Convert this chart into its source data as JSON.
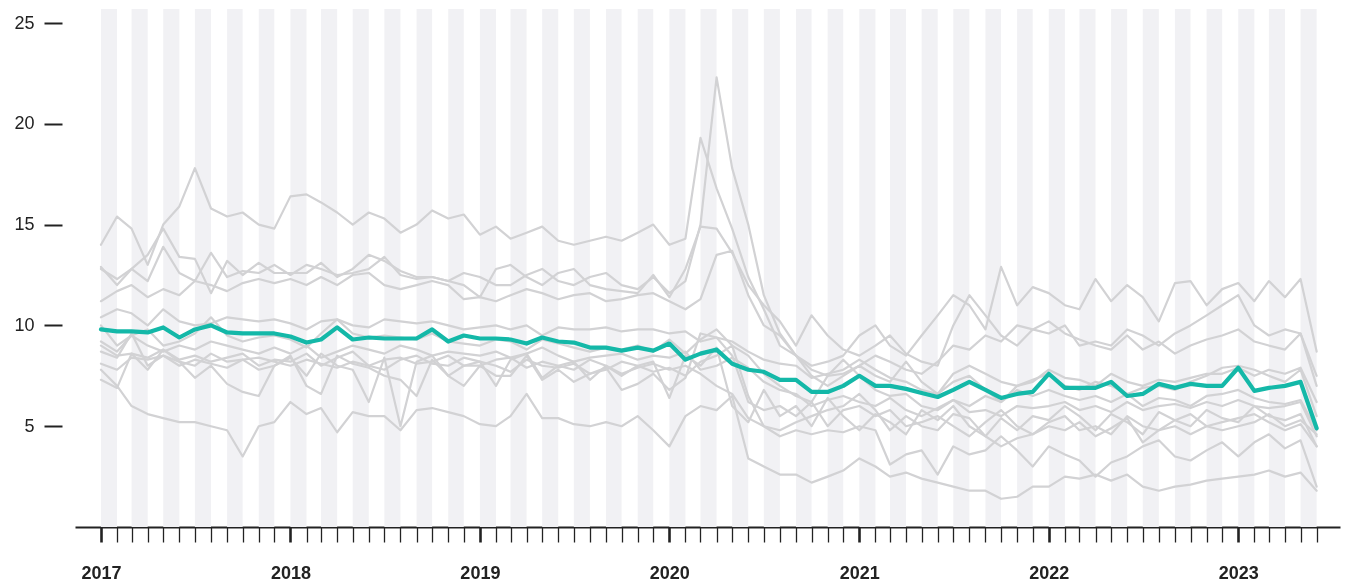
{
  "chart_data": {
    "type": "line",
    "line_style": "solid",
    "x": [
      "2017-01",
      "2017-02",
      "2017-03",
      "2017-04",
      "2017-05",
      "2017-06",
      "2017-07",
      "2017-08",
      "2017-09",
      "2017-10",
      "2017-11",
      "2017-12",
      "2018-01",
      "2018-02",
      "2018-03",
      "2018-04",
      "2018-05",
      "2018-06",
      "2018-07",
      "2018-08",
      "2018-09",
      "2018-10",
      "2018-11",
      "2018-12",
      "2019-01",
      "2019-02",
      "2019-03",
      "2019-04",
      "2019-05",
      "2019-06",
      "2019-07",
      "2019-08",
      "2019-09",
      "2019-10",
      "2019-11",
      "2019-12",
      "2020-01",
      "2020-02",
      "2020-03",
      "2020-04",
      "2020-05",
      "2020-06",
      "2020-07",
      "2020-08",
      "2020-09",
      "2020-10",
      "2020-11",
      "2020-12",
      "2021-01",
      "2021-02",
      "2021-03",
      "2021-04",
      "2021-05",
      "2021-06",
      "2021-07",
      "2021-08",
      "2021-09",
      "2021-10",
      "2021-11",
      "2021-12",
      "2022-01",
      "2022-02",
      "2022-03",
      "2022-04",
      "2022-05",
      "2022-06",
      "2022-07",
      "2022-08",
      "2022-09",
      "2022-10",
      "2022-11",
      "2022-12",
      "2023-01",
      "2023-02",
      "2023-03",
      "2023-04",
      "2023-05",
      "2023-06"
    ],
    "xlim": [
      "2016-11-12",
      "2023-07-16"
    ],
    "xticks": [
      "2017",
      {
        "value": "2017-02",
        "label": null
      },
      {
        "value": "2017-03",
        "label": null
      },
      {
        "value": "2017-04",
        "label": null
      },
      {
        "value": "2017-05",
        "label": null
      },
      {
        "value": "2017-06",
        "label": null
      },
      {
        "value": "2017-07",
        "label": null
      },
      {
        "value": "2017-08",
        "label": null
      },
      {
        "value": "2017-09",
        "label": null
      },
      {
        "value": "2017-10",
        "label": null
      },
      {
        "value": "2017-11",
        "label": null
      },
      {
        "value": "2017-12",
        "label": null
      },
      "2018",
      {
        "value": "2018-02",
        "label": null
      },
      {
        "value": "2018-03",
        "label": null
      },
      {
        "value": "2018-04",
        "label": null
      },
      {
        "value": "2018-05",
        "label": null
      },
      {
        "value": "2018-06",
        "label": null
      },
      {
        "value": "2018-07",
        "label": null
      },
      {
        "value": "2018-08",
        "label": null
      },
      {
        "value": "2018-09",
        "label": null
      },
      {
        "value": "2018-10",
        "label": null
      },
      {
        "value": "2018-11",
        "label": null
      },
      {
        "value": "2018-12",
        "label": null
      },
      "2019",
      {
        "value": "2019-02",
        "label": null
      },
      {
        "value": "2019-03",
        "label": null
      },
      {
        "value": "2019-04",
        "label": null
      },
      {
        "value": "2019-05",
        "label": null
      },
      {
        "value": "2019-06",
        "label": null
      },
      {
        "value": "2019-07",
        "label": null
      },
      {
        "value": "2019-08",
        "label": null
      },
      {
        "value": "2019-09",
        "label": null
      },
      {
        "value": "2019-10",
        "label": null
      },
      {
        "value": "2019-11",
        "label": null
      },
      {
        "value": "2019-12",
        "label": null
      },
      "2020",
      {
        "value": "2020-02",
        "label": null
      },
      {
        "value": "2020-03",
        "label": null
      },
      {
        "value": "2020-04",
        "label": null
      },
      {
        "value": "2020-05",
        "label": null
      },
      {
        "value": "2020-06",
        "label": null
      },
      {
        "value": "2020-07",
        "label": null
      },
      {
        "value": "2020-08",
        "label": null
      },
      {
        "value": "2020-09",
        "label": null
      },
      {
        "value": "2020-10",
        "label": null
      },
      {
        "value": "2020-11",
        "label": null
      },
      {
        "value": "2020-12",
        "label": null
      },
      "2021",
      {
        "value": "2021-02",
        "label": null
      },
      {
        "value": "2021-03",
        "label": null
      },
      {
        "value": "2021-04",
        "label": null
      },
      {
        "value": "2021-05",
        "label": null
      },
      {
        "value": "2021-06",
        "label": null
      },
      {
        "value": "2021-07",
        "label": null
      },
      {
        "value": "2021-08",
        "label": null
      },
      {
        "value": "2021-09",
        "label": null
      },
      {
        "value": "2021-10",
        "label": null
      },
      {
        "value": "2021-11",
        "label": null
      },
      {
        "value": "2021-12",
        "label": null
      },
      "2022",
      {
        "value": "2022-02",
        "label": null
      },
      {
        "value": "2022-03",
        "label": null
      },
      {
        "value": "2022-04",
        "label": null
      },
      {
        "value": "2022-05",
        "label": null
      },
      {
        "value": "2022-06",
        "label": null
      },
      {
        "value": "2022-07",
        "label": null
      },
      {
        "value": "2022-08",
        "label": null
      },
      {
        "value": "2022-09",
        "label": null
      },
      {
        "value": "2022-10",
        "label": null
      },
      {
        "value": "2022-11",
        "label": null
      },
      {
        "value": "2022-12",
        "label": null
      },
      "2023",
      {
        "value": "2023-02",
        "label": null
      },
      {
        "value": "2023-03",
        "label": null
      },
      {
        "value": "2023-04",
        "label": null
      },
      {
        "value": "2023-05",
        "label": null
      },
      {
        "value": "2023-06",
        "label": null
      }
    ],
    "ylim": [
      0,
      25
    ],
    "yticks": [
      5,
      10,
      15,
      20,
      25
    ],
    "bands": [
      {
        "axis": "x",
        "from": "2017-01",
        "to": "2017-02",
        "color": "#f1f1f4"
      },
      {
        "axis": "x",
        "from": "2017-03",
        "to": "2017-04",
        "color": "#f1f1f4"
      },
      {
        "axis": "x",
        "from": "2017-05",
        "to": "2017-06",
        "color": "#f1f1f4"
      },
      {
        "axis": "x",
        "from": "2017-07",
        "to": "2017-08",
        "color": "#f1f1f4"
      },
      {
        "axis": "x",
        "from": "2017-09",
        "to": "2017-10",
        "color": "#f1f1f4"
      },
      {
        "axis": "x",
        "from": "2017-11",
        "to": "2017-12",
        "color": "#f1f1f4"
      },
      {
        "axis": "x",
        "from": "2018-01",
        "to": "2018-02",
        "color": "#f1f1f4"
      },
      {
        "axis": "x",
        "from": "2018-03",
        "to": "2018-04",
        "color": "#f1f1f4"
      },
      {
        "axis": "x",
        "from": "2018-05",
        "to": "2018-06",
        "color": "#f1f1f4"
      },
      {
        "axis": "x",
        "from": "2018-07",
        "to": "2018-08",
        "color": "#f1f1f4"
      },
      {
        "axis": "x",
        "from": "2018-09",
        "to": "2018-10",
        "color": "#f1f1f4"
      },
      {
        "axis": "x",
        "from": "2018-11",
        "to": "2018-12",
        "color": "#f1f1f4"
      },
      {
        "axis": "x",
        "from": "2019-01",
        "to": "2019-02",
        "color": "#f1f1f4"
      },
      {
        "axis": "x",
        "from": "2019-03",
        "to": "2019-04",
        "color": "#f1f1f4"
      },
      {
        "axis": "x",
        "from": "2019-05",
        "to": "2019-06",
        "color": "#f1f1f4"
      },
      {
        "axis": "x",
        "from": "2019-07",
        "to": "2019-08",
        "color": "#f1f1f4"
      },
      {
        "axis": "x",
        "from": "2019-09",
        "to": "2019-10",
        "color": "#f1f1f4"
      },
      {
        "axis": "x",
        "from": "2019-11",
        "to": "2019-12",
        "color": "#f1f1f4"
      },
      {
        "axis": "x",
        "from": "2020-01",
        "to": "2020-02",
        "color": "#f1f1f4"
      },
      {
        "axis": "x",
        "from": "2020-03",
        "to": "2020-04",
        "color": "#f1f1f4"
      },
      {
        "axis": "x",
        "from": "2020-05",
        "to": "2020-06",
        "color": "#f1f1f4"
      },
      {
        "axis": "x",
        "from": "2020-07",
        "to": "2020-08",
        "color": "#f1f1f4"
      },
      {
        "axis": "x",
        "from": "2020-09",
        "to": "2020-10",
        "color": "#f1f1f4"
      },
      {
        "axis": "x",
        "from": "2020-11",
        "to": "2020-12",
        "color": "#f1f1f4"
      },
      {
        "axis": "x",
        "from": "2021-01",
        "to": "2021-02",
        "color": "#f1f1f4"
      },
      {
        "axis": "x",
        "from": "2021-03",
        "to": "2021-04",
        "color": "#f1f1f4"
      },
      {
        "axis": "x",
        "from": "2021-05",
        "to": "2021-06",
        "color": "#f1f1f4"
      },
      {
        "axis": "x",
        "from": "2021-07",
        "to": "2021-08",
        "color": "#f1f1f4"
      },
      {
        "axis": "x",
        "from": "2021-09",
        "to": "2021-10",
        "color": "#f1f1f4"
      },
      {
        "axis": "x",
        "from": "2021-11",
        "to": "2021-12",
        "color": "#f1f1f4"
      },
      {
        "axis": "x",
        "from": "2022-01",
        "to": "2022-02",
        "color": "#f1f1f4"
      },
      {
        "axis": "x",
        "from": "2022-03",
        "to": "2022-04",
        "color": "#f1f1f4"
      },
      {
        "axis": "x",
        "from": "2022-05",
        "to": "2022-06",
        "color": "#f1f1f4"
      },
      {
        "axis": "x",
        "from": "2022-07",
        "to": "2022-08",
        "color": "#f1f1f4"
      },
      {
        "axis": "x",
        "from": "2022-09",
        "to": "2022-10",
        "color": "#f1f1f4"
      },
      {
        "axis": "x",
        "from": "2022-11",
        "to": "2022-12",
        "color": "#f1f1f4"
      },
      {
        "axis": "x",
        "from": "2023-01",
        "to": "2023-02",
        "color": "#f1f1f4"
      },
      {
        "axis": "x",
        "from": "2023-03",
        "to": "2023-04",
        "color": "#f1f1f4"
      },
      {
        "axis": "x",
        "from": "2023-05",
        "to": "2023-06",
        "color": "#f1f1f4"
      }
    ],
    "series": [
      {
        "color": "#d2d2d4",
        "values": [
          14.0,
          15.4,
          14.8,
          13.0,
          15.0,
          15.9,
          17.8,
          15.8,
          15.4,
          15.6,
          15.0,
          14.8,
          16.4,
          16.5,
          16.1,
          15.6,
          15.0,
          15.6,
          15.3,
          14.6,
          15.0,
          15.7,
          15.3,
          15.5,
          14.5,
          14.9,
          14.3,
          14.6,
          14.9,
          14.2,
          14.0,
          14.2,
          14.4,
          14.2,
          14.6,
          15.0,
          14.0,
          14.3,
          19.3,
          16.8,
          14.8,
          12.4,
          10.8,
          9.0,
          8.5,
          8.0,
          8.2,
          8.5,
          9.5,
          10.0,
          9.0,
          8.5,
          9.5,
          10.5,
          11.5,
          11.0,
          9.8,
          12.9,
          11.0,
          11.9,
          11.6,
          11.0,
          10.8,
          12.3,
          11.2,
          12.0,
          11.4,
          10.2,
          12.1,
          12.2,
          11.0,
          11.8,
          12.1,
          11.2,
          12.2,
          11.4,
          12.3,
          8.7
        ]
      },
      {
        "color": "#d2d2d4",
        "values": [
          12.8,
          12.3,
          12.8,
          12.2,
          13.9,
          12.6,
          12.2,
          13.6,
          12.4,
          12.7,
          12.6,
          13.0,
          12.5,
          13.0,
          12.8,
          12.5,
          12.6,
          12.8,
          13.4,
          12.5,
          12.3,
          12.4,
          12.2,
          12.6,
          12.4,
          12.0,
          12.0,
          12.5,
          12.8,
          12.2,
          12.0,
          12.4,
          12.6,
          12.0,
          11.8,
          12.4,
          11.6,
          12.2,
          15.0,
          22.3,
          17.8,
          15.0,
          11.5,
          9.6,
          8.5,
          7.5,
          7.0,
          7.5,
          8.0,
          7.5,
          7.2,
          8.2,
          7.2,
          6.6,
          7.2,
          7.5,
          6.8,
          6.2,
          7.0,
          7.3,
          7.6,
          7.0,
          6.8,
          7.2,
          7.0,
          6.6,
          6.9,
          7.0,
          6.8,
          7.2,
          7.5,
          7.9,
          8.0,
          7.8,
          7.5,
          7.2,
          7.8,
          5.5
        ]
      },
      {
        "color": "#d2d2d4",
        "values": [
          12.9,
          12.0,
          12.8,
          13.5,
          14.8,
          13.4,
          13.3,
          11.6,
          13.2,
          12.5,
          13.1,
          12.6,
          12.6,
          12.6,
          13.1,
          12.4,
          12.8,
          13.5,
          13.2,
          12.7,
          12.4,
          12.4,
          12.2,
          12.0,
          11.4,
          12.8,
          13.0,
          12.4,
          12.0,
          12.6,
          12.8,
          12.0,
          11.8,
          11.7,
          11.6,
          12.5,
          11.4,
          12.8,
          14.9,
          14.8,
          13.6,
          12.0,
          11.0,
          10.2,
          9.0,
          10.5,
          9.5,
          8.8,
          8.5,
          9.0,
          9.5,
          8.6,
          8.2,
          8.0,
          10.0,
          11.5,
          10.5,
          9.5,
          9.0,
          9.8,
          9.6,
          10.0,
          9.0,
          9.2,
          9.0,
          9.8,
          9.5,
          9.0,
          9.6,
          10.0,
          10.5,
          11.0,
          11.5,
          10.0,
          9.5,
          9.8,
          9.6,
          7.5
        ]
      },
      {
        "color": "#d2d2d4",
        "values": [
          11.2,
          11.7,
          12.0,
          11.4,
          11.8,
          11.5,
          12.2,
          12.0,
          11.7,
          12.1,
          12.3,
          12.1,
          12.3,
          12.0,
          12.4,
          12.0,
          12.5,
          12.6,
          12.0,
          11.8,
          12.0,
          12.2,
          12.0,
          11.3,
          11.4,
          11.2,
          11.5,
          11.8,
          11.6,
          11.3,
          11.5,
          11.6,
          11.2,
          11.3,
          11.5,
          11.6,
          11.2,
          10.8,
          11.3,
          13.5,
          13.7,
          11.5,
          10.0,
          9.5,
          8.5,
          7.8,
          7.5,
          7.6,
          8.0,
          8.5,
          8.2,
          7.8,
          7.6,
          8.2,
          9.0,
          8.8,
          9.5,
          9.2,
          10.0,
          9.8,
          10.2,
          9.6,
          9.3,
          9.0,
          8.8,
          9.5,
          8.8,
          9.2,
          8.6,
          9.0,
          9.3,
          9.5,
          9.8,
          9.2,
          9.0,
          8.8,
          9.6,
          7.0
        ]
      },
      {
        "color": "#d2d2d4",
        "values": [
          10.4,
          10.8,
          10.6,
          10.0,
          10.8,
          10.2,
          10.0,
          10.1,
          10.4,
          10.3,
          10.2,
          10.3,
          10.1,
          9.8,
          10.2,
          10.3,
          10.0,
          9.9,
          10.3,
          10.2,
          10.1,
          10.2,
          10.0,
          9.8,
          9.9,
          10.0,
          9.8,
          10.0,
          9.5,
          9.9,
          9.8,
          9.8,
          9.9,
          9.7,
          9.8,
          9.8,
          9.6,
          9.7,
          9.2,
          9.4,
          9.2,
          8.7,
          8.3,
          8.1,
          8.0,
          7.4,
          7.6,
          7.8,
          8.3,
          7.8,
          7.4,
          7.2,
          6.8,
          6.6,
          7.6,
          8.0,
          7.6,
          7.2,
          7.0,
          7.2,
          7.8,
          7.4,
          7.3,
          7.0,
          7.6,
          7.2,
          7.0,
          7.3,
          7.2,
          7.4,
          7.6,
          7.6,
          7.9,
          7.5,
          7.8,
          7.6,
          7.9,
          6.2
        ]
      },
      {
        "color": "#d2d2d4",
        "values": [
          10.0,
          9.0,
          9.5,
          9.8,
          9.0,
          9.2,
          9.6,
          10.4,
          9.5,
          9.2,
          9.4,
          9.5,
          9.3,
          8.9,
          9.6,
          10.3,
          9.6,
          9.4,
          9.5,
          9.4,
          9.3,
          9.6,
          9.2,
          9.1,
          9.0,
          9.3,
          9.2,
          8.8,
          9.3,
          9.1,
          8.9,
          8.7,
          8.9,
          8.8,
          9.0,
          8.7,
          9.3,
          8.6,
          9.3,
          9.8,
          9.0,
          8.5,
          7.6,
          7.0,
          6.5,
          6.2,
          7.5,
          8.3,
          7.5,
          6.8,
          6.5,
          6.6,
          6.0,
          5.8,
          6.3,
          6.0,
          6.5,
          6.2,
          6.8,
          6.5,
          6.8,
          6.5,
          6.3,
          6.5,
          6.2,
          6.6,
          6.0,
          6.4,
          6.3,
          6.0,
          6.5,
          6.6,
          6.8,
          6.4,
          6.2,
          6.1,
          6.3,
          4.8
        ]
      },
      {
        "color": "#d2d2d4",
        "values": [
          9.2,
          8.7,
          9.5,
          9.0,
          8.7,
          9.0,
          8.8,
          9.2,
          9.0,
          8.8,
          8.6,
          8.9,
          8.6,
          9.0,
          8.4,
          8.7,
          9.0,
          8.8,
          8.6,
          9.0,
          8.8,
          8.5,
          8.7,
          8.6,
          8.5,
          8.7,
          8.4,
          8.6,
          8.9,
          8.5,
          8.2,
          8.4,
          8.5,
          8.6,
          8.3,
          8.5,
          8.4,
          8.7,
          7.8,
          8.0,
          8.4,
          7.9,
          7.2,
          6.8,
          6.6,
          6.0,
          6.3,
          6.5,
          6.2,
          6.0,
          6.4,
          5.8,
          5.5,
          5.9,
          6.3,
          5.7,
          5.8,
          5.5,
          6.0,
          5.9,
          6.0,
          6.2,
          5.8,
          6.0,
          5.7,
          6.2,
          5.8,
          6.0,
          6.1,
          5.9,
          6.2,
          6.0,
          6.3,
          6.0,
          5.9,
          6.0,
          6.2,
          4.5
        ]
      },
      {
        "color": "#d2d2d4",
        "values": [
          8.7,
          8.4,
          9.6,
          8.0,
          8.5,
          8.2,
          8.0,
          8.6,
          8.2,
          8.3,
          7.8,
          8.0,
          8.4,
          7.5,
          8.6,
          8.0,
          7.8,
          6.2,
          8.4,
          5.0,
          8.2,
          8.5,
          7.5,
          8.0,
          8.2,
          7.0,
          8.3,
          8.6,
          7.4,
          8.0,
          8.2,
          7.3,
          8.0,
          7.5,
          8.0,
          8.2,
          6.4,
          8.5,
          8.0,
          8.9,
          6.0,
          5.2,
          6.8,
          5.5,
          6.0,
          5.0,
          6.4,
          5.5,
          4.8,
          5.6,
          5.2,
          4.6,
          5.8,
          5.3,
          6.0,
          5.0,
          4.5,
          5.4,
          4.8,
          5.5,
          5.3,
          6.0,
          5.5,
          4.8,
          5.6,
          5.2,
          4.6,
          5.7,
          5.3,
          5.0,
          5.8,
          5.4,
          5.2,
          6.0,
          5.5,
          5.3,
          5.6,
          4.0
        ]
      },
      {
        "color": "#d2d2d4",
        "values": [
          8.1,
          7.8,
          8.4,
          8.3,
          8.5,
          8.0,
          8.3,
          8.1,
          7.9,
          8.3,
          8.4,
          8.2,
          8.0,
          8.3,
          8.1,
          7.9,
          8.2,
          8.0,
          7.8,
          8.3,
          8.5,
          8.1,
          8.0,
          8.4,
          8.2,
          8.0,
          7.7,
          8.3,
          8.0,
          7.9,
          8.1,
          7.6,
          7.8,
          8.2,
          8.0,
          7.7,
          7.9,
          7.5,
          8.2,
          8.5,
          9.0,
          6.5,
          5.0,
          4.8,
          5.2,
          5.5,
          5.8,
          6.0,
          6.6,
          5.8,
          4.8,
          5.5,
          5.0,
          4.8,
          5.6,
          5.4,
          4.5,
          4.0,
          4.4,
          4.6,
          5.0,
          4.8,
          5.2,
          4.5,
          4.9,
          5.4,
          4.2,
          4.8,
          5.0,
          4.6,
          5.0,
          5.2,
          5.4,
          5.6,
          5.2,
          4.8,
          5.1,
          4.0
        ]
      },
      {
        "color": "#d2d2d4",
        "values": [
          7.3,
          6.9,
          8.6,
          7.8,
          8.8,
          8.2,
          7.4,
          8.0,
          7.1,
          6.7,
          6.5,
          8.0,
          8.5,
          7.0,
          6.6,
          8.5,
          8.1,
          7.9,
          7.5,
          7.3,
          6.5,
          8.3,
          7.5,
          7.0,
          8.0,
          7.5,
          7.5,
          8.5,
          7.3,
          7.8,
          7.2,
          7.6,
          7.9,
          6.8,
          7.1,
          7.6,
          6.8,
          7.4,
          9.6,
          9.4,
          8.5,
          6.2,
          5.8,
          6.0,
          5.5,
          6.2,
          5.0,
          5.8,
          6.0,
          5.5,
          5.8,
          5.0,
          5.2,
          5.5,
          5.0,
          4.5,
          5.2,
          5.8,
          5.0,
          4.6,
          5.2,
          5.5,
          4.8,
          5.0,
          4.6,
          5.5,
          5.0,
          4.8,
          5.3,
          5.6,
          5.0,
          4.8,
          5.0,
          5.2,
          5.6,
          5.0,
          5.3,
          4.6
        ]
      },
      {
        "color": "#d2d2d4",
        "values": [
          7.8,
          7.0,
          6.0,
          5.6,
          5.4,
          5.2,
          5.2,
          5.0,
          4.8,
          3.5,
          5.0,
          5.2,
          6.2,
          5.6,
          5.9,
          4.7,
          5.7,
          5.5,
          5.5,
          4.8,
          5.8,
          5.9,
          5.7,
          5.5,
          5.1,
          5.0,
          5.5,
          6.6,
          5.4,
          5.4,
          5.1,
          5.0,
          5.2,
          5.0,
          5.5,
          4.8,
          4.0,
          5.5,
          6.0,
          5.8,
          6.5,
          3.4,
          3.0,
          2.6,
          2.6,
          2.2,
          2.5,
          2.8,
          3.4,
          3.0,
          2.5,
          2.7,
          2.4,
          2.2,
          2.0,
          1.8,
          1.8,
          1.4,
          1.5,
          2.0,
          2.0,
          2.5,
          2.4,
          2.6,
          2.3,
          2.6,
          2.0,
          1.8,
          2.0,
          2.1,
          2.3,
          2.4,
          2.5,
          2.6,
          2.8,
          2.5,
          2.7,
          1.8
        ]
      },
      {
        "color": "#d2d2d4",
        "values": [
          9.0,
          8.5,
          8.6,
          8.4,
          8.8,
          8.3,
          8.5,
          8.2,
          8.4,
          8.6,
          8.0,
          8.3,
          8.2,
          8.6,
          8.0,
          8.4,
          8.7,
          8.0,
          8.3,
          8.4,
          8.1,
          8.2,
          8.5,
          8.0,
          8.0,
          8.3,
          8.4,
          7.9,
          8.2,
          8.0,
          7.8,
          8.3,
          8.0,
          7.6,
          7.9,
          8.1,
          7.8,
          8.0,
          7.6,
          7.0,
          6.6,
          5.4,
          5.0,
          4.5,
          4.8,
          4.6,
          4.8,
          4.7,
          5.0,
          4.8,
          3.1,
          3.6,
          3.8,
          2.6,
          4.0,
          3.6,
          3.8,
          4.5,
          3.8,
          3.0,
          4.0,
          3.6,
          3.3,
          2.5,
          3.2,
          3.5,
          4.0,
          4.3,
          3.5,
          3.3,
          3.8,
          4.2,
          3.5,
          4.2,
          4.6,
          3.9,
          4.3,
          2.0
        ]
      },
      {
        "color": "#14b8a8",
        "values": [
          9.8,
          9.7,
          9.7,
          9.65,
          9.9,
          9.4,
          9.8,
          10.0,
          9.65,
          9.6,
          9.6,
          9.6,
          9.45,
          9.15,
          9.3,
          9.9,
          9.3,
          9.4,
          9.35,
          9.35,
          9.35,
          9.8,
          9.2,
          9.5,
          9.35,
          9.35,
          9.3,
          9.1,
          9.4,
          9.2,
          9.15,
          8.9,
          8.9,
          8.75,
          8.9,
          8.75,
          9.1,
          8.3,
          8.6,
          8.8,
          8.1,
          7.8,
          7.7,
          7.3,
          7.3,
          6.7,
          6.7,
          7.0,
          7.5,
          7.0,
          7.0,
          6.85,
          6.65,
          6.45,
          6.8,
          7.2,
          6.8,
          6.4,
          6.6,
          6.7,
          7.6,
          6.9,
          6.9,
          6.9,
          7.2,
          6.5,
          6.6,
          7.1,
          6.9,
          7.1,
          7.0,
          7.0,
          7.9,
          6.75,
          6.9,
          7.0,
          7.2,
          4.9
        ]
      }
    ]
  }
}
